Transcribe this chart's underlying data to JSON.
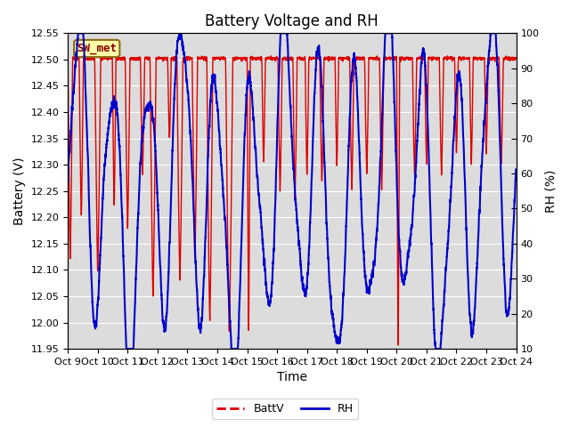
{
  "title": "Battery Voltage and RH",
  "xlabel": "Time",
  "ylabel_left": "Battery (V)",
  "ylabel_right": "RH (%)",
  "ylim_left": [
    11.95,
    12.55
  ],
  "ylim_right": [
    10,
    100
  ],
  "yticks_left": [
    11.95,
    12.0,
    12.05,
    12.1,
    12.15,
    12.2,
    12.25,
    12.3,
    12.35,
    12.4,
    12.45,
    12.5,
    12.55
  ],
  "yticks_right": [
    10,
    20,
    30,
    40,
    50,
    60,
    70,
    80,
    90,
    100
  ],
  "x_tick_labels": [
    "Oct 9",
    "Oct 10",
    "Oct 11",
    "Oct 12",
    "Oct 13",
    "Oct 14",
    "Oct 15",
    "Oct 16",
    "Oct 17",
    "Oct 18",
    "Oct 19",
    "Oct 20",
    "Oct 21",
    "Oct 22",
    "Oct 23",
    "Oct 24"
  ],
  "battv_color": "#DD0000",
  "rh_color": "#0000CC",
  "background_plot": "#DCDCDC",
  "background_fig": "#FFFFFF",
  "grid_color": "#FFFFFF",
  "legend_label_battv": "BattV",
  "legend_label_rh": "RH",
  "station_label": "SW_met",
  "station_box_bg": "#FFFFAA",
  "station_box_edge": "#8B6914",
  "title_fontsize": 12,
  "axis_label_fontsize": 10,
  "tick_fontsize": 8
}
